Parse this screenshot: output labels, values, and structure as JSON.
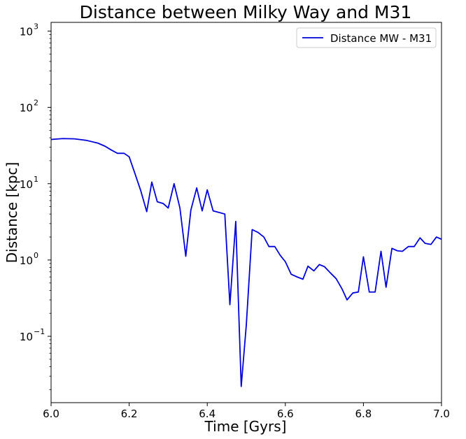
{
  "chart_data": {
    "type": "line",
    "title": "Distance between Milky Way and M31",
    "xlabel": "Time [Gyrs]",
    "ylabel": "Distance [kpc]",
    "xlim": [
      6.0,
      7.0
    ],
    "ylim": [
      0.0135,
      1300
    ],
    "yscale": "log",
    "legend_position": "top-right",
    "grid": false,
    "x_ticks": [
      {
        "value": 6.0,
        "label": "6.0"
      },
      {
        "value": 6.2,
        "label": "6.2"
      },
      {
        "value": 6.4,
        "label": "6.4"
      },
      {
        "value": 6.6,
        "label": "6.6"
      },
      {
        "value": 6.8,
        "label": "6.8"
      },
      {
        "value": 7.0,
        "label": "7.0"
      }
    ],
    "y_ticks": [
      {
        "value": 0.1,
        "base": "10",
        "exp": "−1"
      },
      {
        "value": 1,
        "base": "10",
        "exp": "0"
      },
      {
        "value": 10,
        "base": "10",
        "exp": "1"
      },
      {
        "value": 100,
        "base": "10",
        "exp": "2"
      },
      {
        "value": 1000,
        "base": "10",
        "exp": "3"
      }
    ],
    "series": [
      {
        "name": "Distance MW - M31",
        "color": "#0000dd",
        "x": [
          6.0,
          6.03,
          6.06,
          6.09,
          6.12,
          6.138,
          6.155,
          6.17,
          6.187,
          6.2,
          6.215,
          6.23,
          6.245,
          6.258,
          6.272,
          6.287,
          6.3,
          6.315,
          6.33,
          6.345,
          6.358,
          6.373,
          6.387,
          6.4,
          6.415,
          6.43,
          6.445,
          6.458,
          6.473,
          6.487,
          6.5,
          6.515,
          6.53,
          6.545,
          6.558,
          6.573,
          6.587,
          6.6,
          6.615,
          6.63,
          6.645,
          6.658,
          6.673,
          6.687,
          6.7,
          6.715,
          6.73,
          6.745,
          6.758,
          6.773,
          6.787,
          6.8,
          6.815,
          6.83,
          6.845,
          6.858,
          6.873,
          6.887,
          6.9,
          6.915,
          6.93,
          6.945,
          6.958,
          6.973,
          6.987,
          7.0
        ],
        "y": [
          38,
          39,
          38.7,
          37,
          34,
          31,
          27.5,
          25,
          25,
          22.5,
          13.5,
          8,
          4.3,
          10.5,
          5.8,
          5.5,
          4.8,
          10,
          4.8,
          1.12,
          4.5,
          8.8,
          4.4,
          8.3,
          4.4,
          4.2,
          4.0,
          0.26,
          3.2,
          0.022,
          0.14,
          2.5,
          2.3,
          2.0,
          1.5,
          1.5,
          1.15,
          0.95,
          0.65,
          0.6,
          0.56,
          0.83,
          0.72,
          0.87,
          0.82,
          0.68,
          0.57,
          0.42,
          0.3,
          0.37,
          0.38,
          1.1,
          0.38,
          0.38,
          1.3,
          0.44,
          1.42,
          1.32,
          1.3,
          1.5,
          1.5,
          1.95,
          1.65,
          1.6,
          2.0,
          1.87
        ]
      }
    ]
  }
}
